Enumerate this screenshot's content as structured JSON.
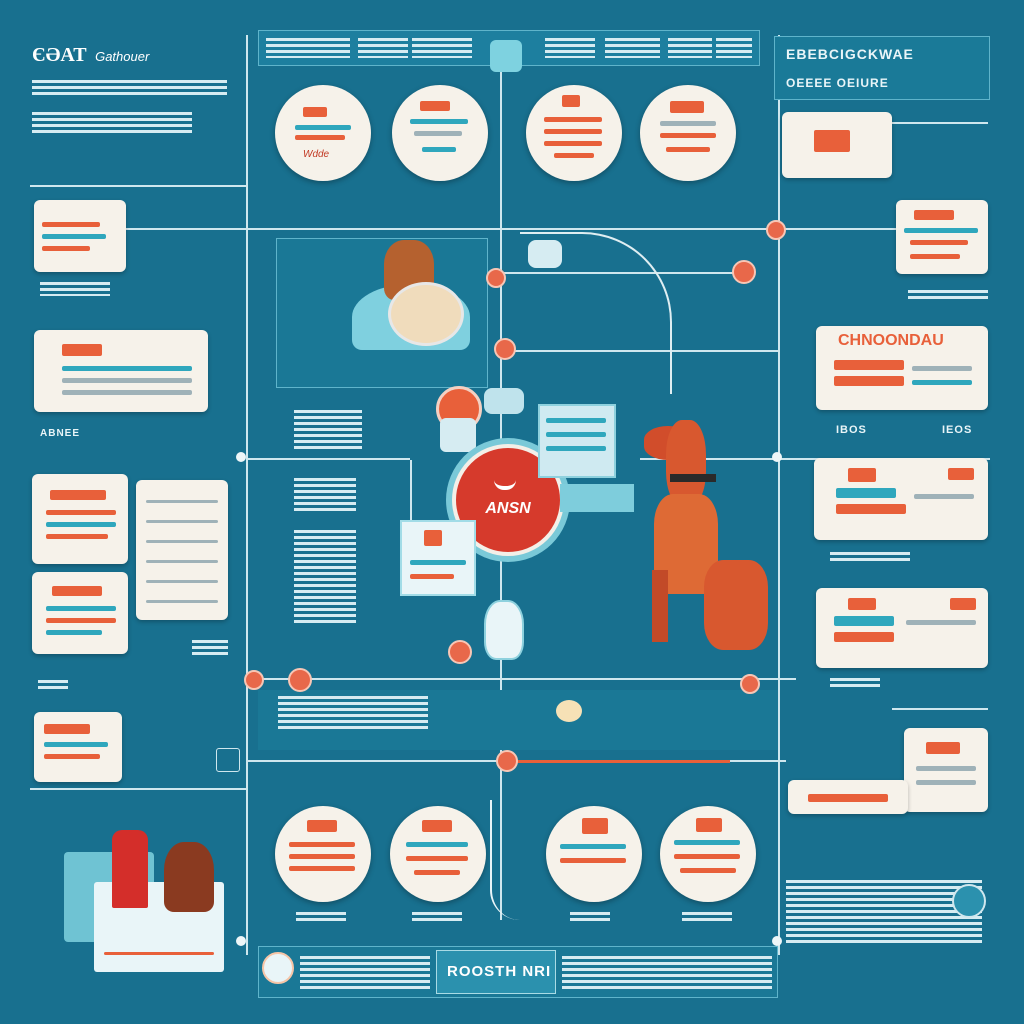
{
  "header": {
    "logo_text": "ЄƏAT",
    "logo_sub": "Gathouer",
    "top_right_line1": "EBEBCIGCKWAE",
    "top_right_line2": "OEEEE OEIURE"
  },
  "labels": {
    "center_badge": "ANSN",
    "footer_center": "ROOSTH NRI",
    "circle_top_1": "Wdde",
    "right_card_1": "CHNOONDAU",
    "side_label_left": "ABNEE",
    "side_label_right_1": "IBOS",
    "side_label_right_2": "IEOS"
  },
  "colors": {
    "background": "#18708f",
    "accent_orange": "#e8603a",
    "accent_red": "#d63a2c",
    "card": "#f6f2ea",
    "line": "#cfe7ee",
    "teal": "#2fa7bd"
  },
  "icons": [
    "dog-icon",
    "dog-bowl-icon",
    "dog-walk-icon",
    "house-icon"
  ]
}
